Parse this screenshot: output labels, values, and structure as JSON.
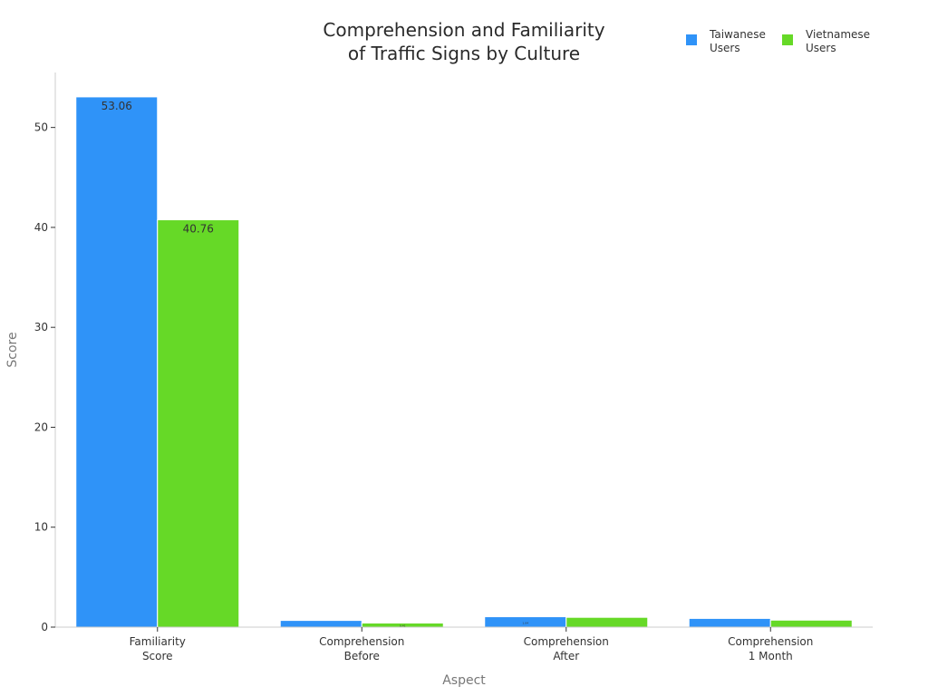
{
  "colors": {
    "taiwanese": "#2f93f8",
    "vietnamese": "#66d927",
    "axis": "#cccccc",
    "tick": "#333333"
  },
  "chart_data": {
    "type": "bar",
    "title": [
      "Comprehension and Familiarity",
      "of Traffic Signs by Culture"
    ],
    "xlabel": "Aspect",
    "ylabel": "Score",
    "categories": [
      [
        "Familiarity",
        "Score"
      ],
      [
        "Comprehension",
        "Before"
      ],
      [
        "Comprehension",
        "After"
      ],
      [
        "Comprehension",
        "1 Month"
      ]
    ],
    "series": [
      {
        "name": [
          "Taiwanese",
          "Users"
        ],
        "color": "#2f93f8",
        "values": [
          53.06,
          0.67,
          1.04,
          0.87
        ],
        "labels": [
          "53.06",
          "",
          "1.04",
          ""
        ]
      },
      {
        "name": [
          "Vietnamese",
          "Users"
        ],
        "color": "#66d927",
        "values": [
          40.76,
          0.41,
          0.98,
          0.7
        ],
        "labels": [
          "40.76",
          "0.41",
          "",
          ""
        ]
      }
    ],
    "ylim": [
      0,
      55.5
    ],
    "yticks": [
      0,
      10,
      20,
      30,
      40,
      50
    ],
    "grid": false,
    "legend": "top-right"
  }
}
